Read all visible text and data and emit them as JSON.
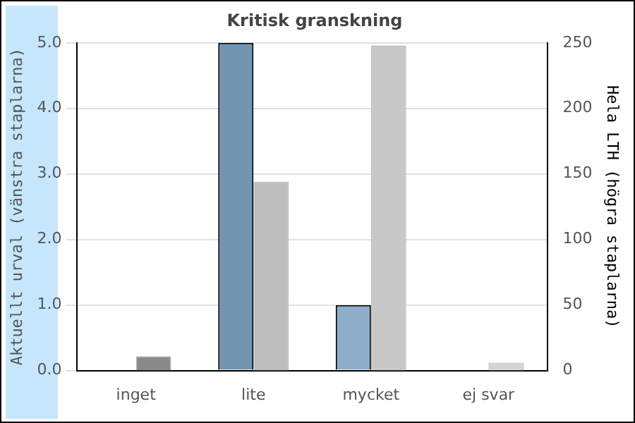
{
  "chart_data": {
    "type": "bar",
    "title": "Kritisk granskning",
    "ylabel": "Aktuellt urval (vänstra staplarna)",
    "y2label": "Hela LTH (högra staplarna)",
    "categories": [
      "inget",
      "lite",
      "mycket",
      "ej svar"
    ],
    "series": [
      {
        "colors": [
          "#7395b0",
          "#7395b0",
          "#8eaecb",
          "#8eaecb"
        ],
        "values": [
          0,
          5,
          1,
          0
        ]
      },
      {
        "axis": "y2",
        "colors": [
          "#8a8a8a",
          "#bebebe",
          "#c8c8c8",
          "#d4d4d4"
        ],
        "values": [
          11,
          144,
          248,
          6
        ]
      }
    ],
    "ylim": [
      0,
      5
    ],
    "yticks": [
      {
        "value": 0,
        "label": "0.0"
      },
      {
        "value": 1,
        "label": "1.0"
      },
      {
        "value": 2,
        "label": "2.0"
      },
      {
        "value": 3,
        "label": "3.0"
      },
      {
        "value": 4,
        "label": "4.0"
      },
      {
        "value": 5,
        "label": "5.0"
      }
    ],
    "y2lim": [
      0,
      250
    ],
    "y2ticks": [
      0,
      50,
      100,
      150,
      200,
      250
    ],
    "grid": "y",
    "legend": false
  }
}
